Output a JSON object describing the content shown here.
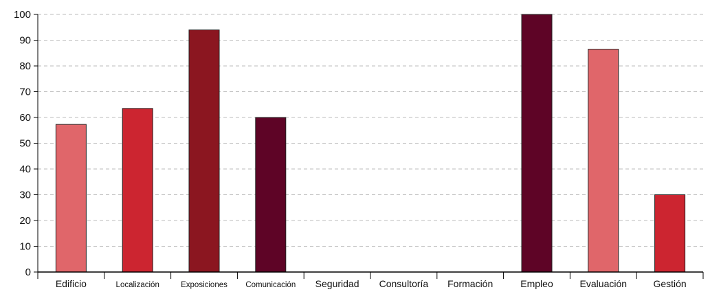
{
  "chart_data": {
    "type": "bar",
    "title": "",
    "xlabel": "",
    "ylabel": "",
    "categories": [
      "Edificio",
      "Localización",
      "Exposiciones",
      "Comunicación",
      "Seguridad",
      "Consultoría",
      "Formación",
      "Empleo",
      "Evaluación",
      "Gestión"
    ],
    "values": [
      57.3,
      63.5,
      94,
      60,
      0,
      0,
      0,
      100,
      86.5,
      30
    ],
    "bar_colors": [
      "#e0666a",
      "#cc2530",
      "#8b1620",
      "#5e0426",
      "#e0666a",
      "#cc2530",
      "#8b1620",
      "#5e0426",
      "#e0666a",
      "#cc2530"
    ],
    "ylim": [
      0,
      100
    ],
    "yticks": [
      0,
      10,
      20,
      30,
      40,
      50,
      60,
      70,
      80,
      90,
      100
    ],
    "grid": true,
    "legend": "none"
  }
}
